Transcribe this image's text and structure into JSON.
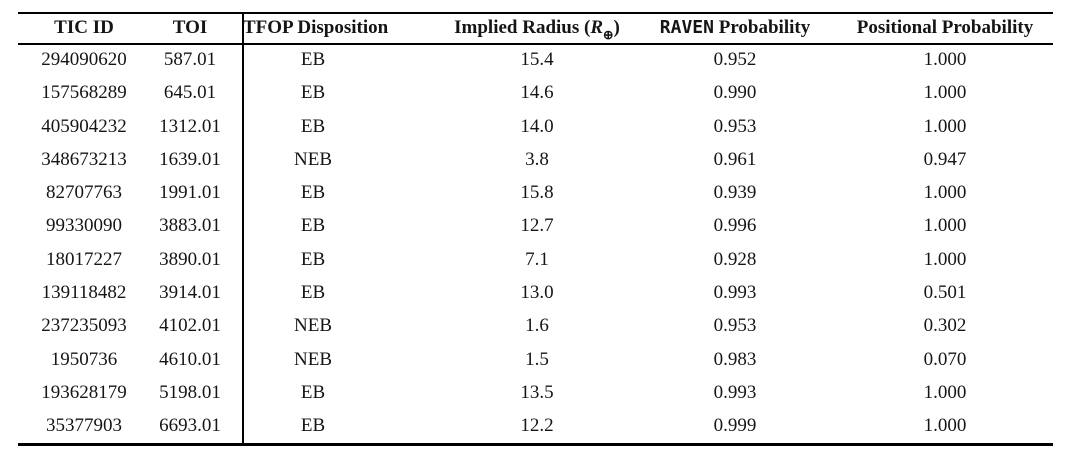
{
  "table": {
    "headers": {
      "tic_id": "TIC ID",
      "toi": "TOI",
      "tfop_disposition": "TFOP Disposition",
      "implied_radius": {
        "prefix": "Implied Radius (",
        "symbol": "R",
        "subscript": "⊕",
        "suffix": ")"
      },
      "raven": {
        "word": "RAVEN",
        "rest": " Probability"
      },
      "positional": "Positional Probability"
    },
    "rows": [
      [
        "294090620",
        "587.01",
        "EB",
        "15.4",
        "0.952",
        "1.000"
      ],
      [
        "157568289",
        "645.01",
        "EB",
        "14.6",
        "0.990",
        "1.000"
      ],
      [
        "405904232",
        "1312.01",
        "EB",
        "14.0",
        "0.953",
        "1.000"
      ],
      [
        "348673213",
        "1639.01",
        "NEB",
        "3.8",
        "0.961",
        "0.947"
      ],
      [
        "82707763",
        "1991.01",
        "EB",
        "15.8",
        "0.939",
        "1.000"
      ],
      [
        "99330090",
        "3883.01",
        "EB",
        "12.7",
        "0.996",
        "1.000"
      ],
      [
        "18017227",
        "3890.01",
        "EB",
        "7.1",
        "0.928",
        "1.000"
      ],
      [
        "139118482",
        "3914.01",
        "EB",
        "13.0",
        "0.993",
        "0.501"
      ],
      [
        "237235093",
        "4102.01",
        "NEB",
        "1.6",
        "0.953",
        "0.302"
      ],
      [
        "1950736",
        "4610.01",
        "NEB",
        "1.5",
        "0.983",
        "0.070"
      ],
      [
        "193628179",
        "5198.01",
        "EB",
        "13.5",
        "0.993",
        "1.000"
      ],
      [
        "35377903",
        "6693.01",
        "EB",
        "12.2",
        "0.999",
        "1.000"
      ]
    ],
    "colors": {
      "text": "#151515",
      "rule": "#000000",
      "background": "#ffffff"
    }
  }
}
